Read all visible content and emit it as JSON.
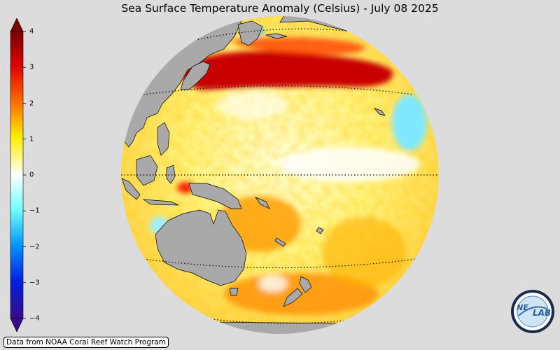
{
  "title": "Sea Surface Temperature Anomaly (Celsius) - July 08 2025",
  "colorbar": {
    "min": -4,
    "max": 4,
    "ticks": [
      {
        "value": 4,
        "label": "4"
      },
      {
        "value": 3,
        "label": "3"
      },
      {
        "value": 2,
        "label": "2"
      },
      {
        "value": 1,
        "label": "1"
      },
      {
        "value": 0,
        "label": "0"
      },
      {
        "value": -1,
        "label": "−1"
      },
      {
        "value": -2,
        "label": "−2"
      },
      {
        "value": -3,
        "label": "−3"
      },
      {
        "value": -4,
        "label": "−4"
      }
    ],
    "colors": [
      "#3a0a8a",
      "#0000ff",
      "#0090ff",
      "#7fffff",
      "#ffffff",
      "#ffff40",
      "#ff9000",
      "#ff0000",
      "#7a0000"
    ]
  },
  "map": {
    "land_color": "#a9a9a9",
    "ocean_base_color": "#fff5a0"
  },
  "credit": "Data from NOAA Coral Reef Watch Program",
  "logo": {
    "text_left": "NE",
    "text_right": "LAB"
  }
}
